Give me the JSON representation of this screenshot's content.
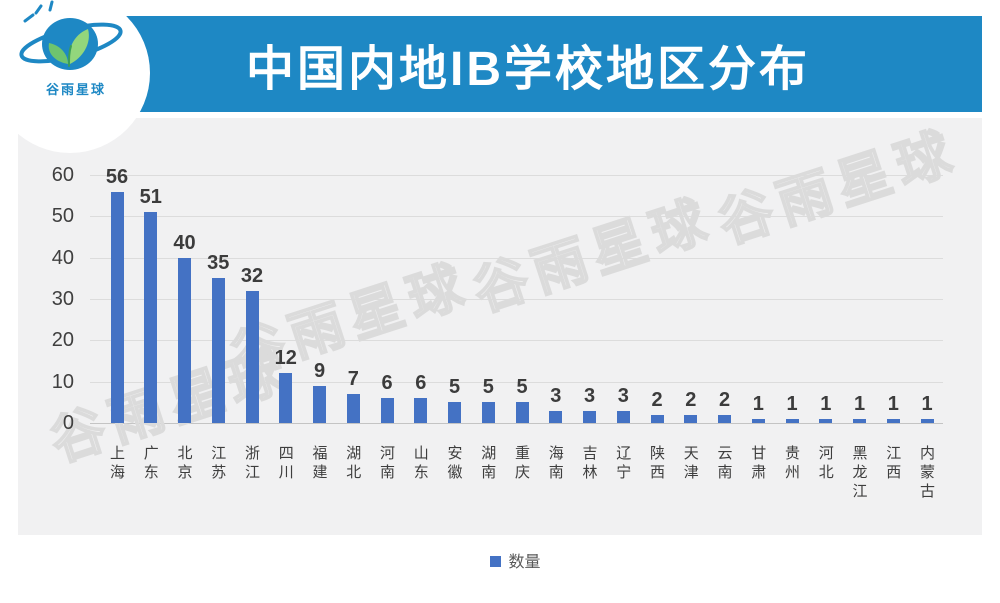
{
  "header": {
    "title": "中国内地IB学校地区分布",
    "bg_color": "#1e88c4",
    "text_color": "#ffffff"
  },
  "logo": {
    "name": "谷雨星球",
    "brand_color": "#1e88c4",
    "leaf_colors": [
      "#6ec46e",
      "#93d67c"
    ],
    "icon": "planet-with-leaves-icon"
  },
  "watermark": {
    "text": "谷雨星球",
    "style": "outlined-diagonal",
    "color": "#dbdbdb"
  },
  "legend": {
    "label": "数量",
    "swatch_color": "#4472c4",
    "position": "bottom-center"
  },
  "chart_data": {
    "type": "bar",
    "title": "中国内地IB学校地区分布",
    "series_name": "数量",
    "categories": [
      "上海",
      "广东",
      "北京",
      "江苏",
      "浙江",
      "四川",
      "福建",
      "湖北",
      "河南",
      "山东",
      "安徽",
      "湖南",
      "重庆",
      "海南",
      "吉林",
      "辽宁",
      "陕西",
      "天津",
      "云南",
      "甘肃",
      "贵州",
      "河北",
      "黑龙江",
      "江西",
      "内蒙古"
    ],
    "values": [
      56,
      51,
      40,
      35,
      32,
      12,
      9,
      7,
      6,
      6,
      5,
      5,
      5,
      3,
      3,
      3,
      2,
      2,
      2,
      1,
      1,
      1,
      1,
      1,
      1
    ],
    "bar_color": "#4472c4",
    "plot_bg_color": "#f1f1f2",
    "ylim": [
      0,
      60
    ],
    "yticks": [
      0,
      10,
      20,
      30,
      40,
      50,
      60
    ],
    "grid": true,
    "data_labels": true,
    "legend_position": "bottom"
  }
}
